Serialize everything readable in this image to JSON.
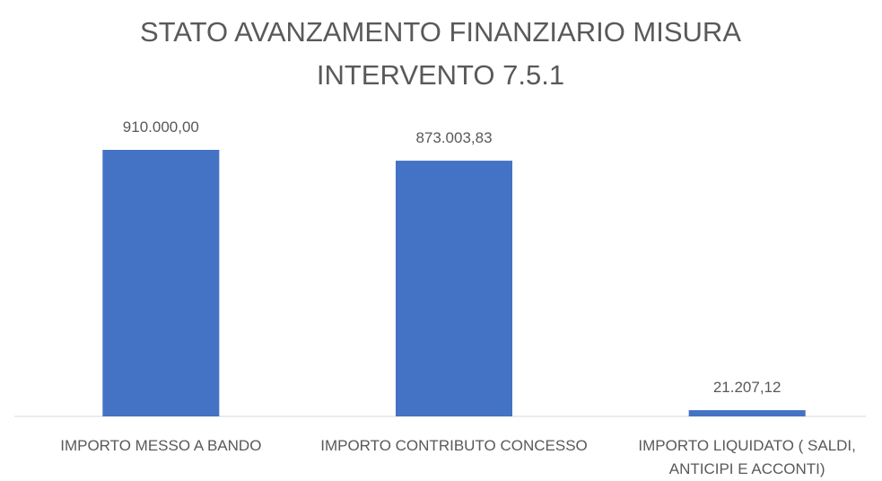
{
  "chart_data": {
    "type": "bar",
    "title": "STATO AVANZAMENTO FINANZIARIO MISURA INTERVENTO 7.5.1",
    "categories": [
      "IMPORTO MESSO A BANDO",
      "IMPORTO CONTRIBUTO CONCESSO",
      "IMPORTO LIQUIDATO ( SALDI, ANTICIPI E ACCONTI)"
    ],
    "values": [
      910000,
      873003.83,
      21207.12
    ],
    "value_labels": [
      "910.000,00",
      "873.003,83",
      "21.207,12"
    ],
    "color": "#4472c4"
  }
}
